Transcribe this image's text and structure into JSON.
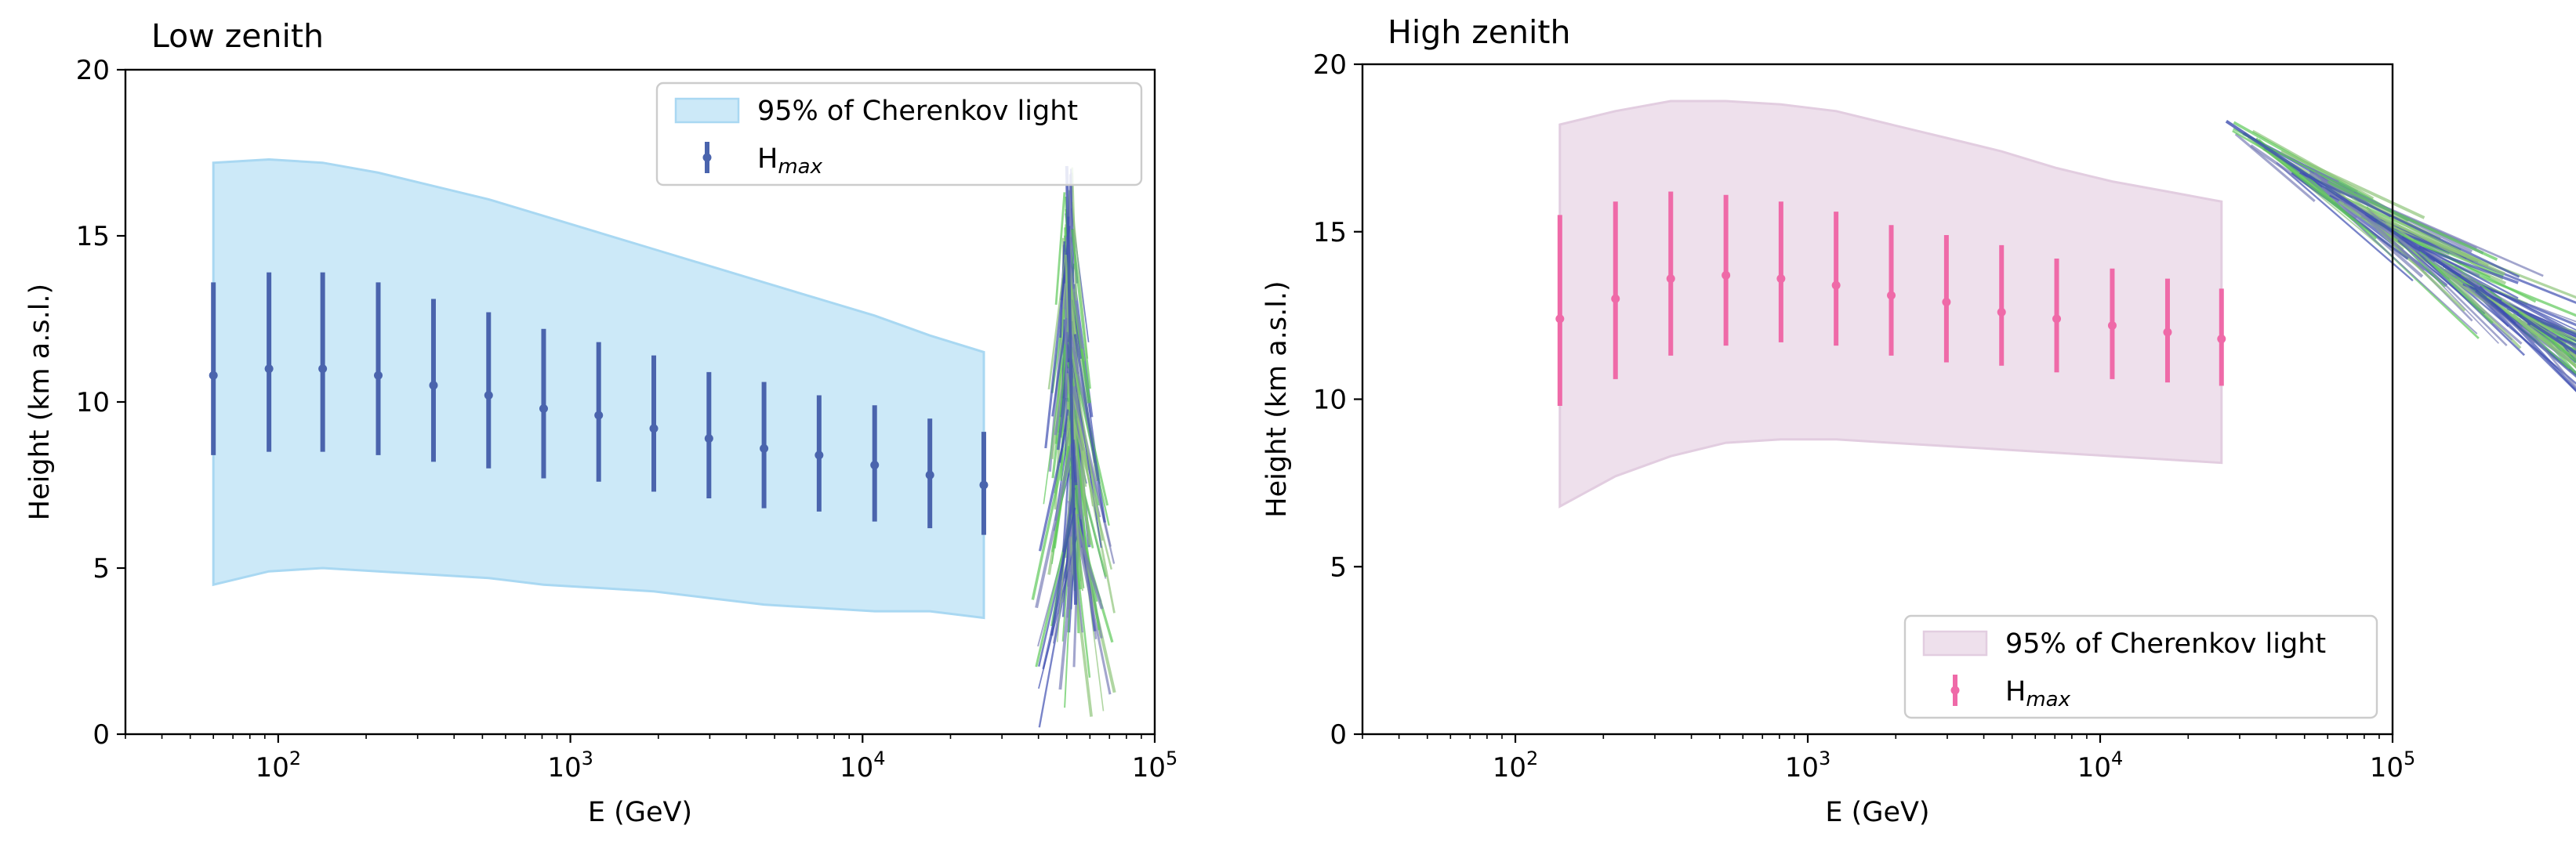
{
  "chart_data": [
    {
      "type": "errorbar+band",
      "title": "Low zenith",
      "xlabel": "E (GeV)",
      "ylabel": "Height (km a.s.l.)",
      "xscale": "log",
      "xlim": [
        30,
        100000
      ],
      "ylim": [
        0,
        20
      ],
      "yticks": [
        "0",
        "5",
        "10",
        "15",
        "20"
      ],
      "xticks": [
        {
          "base": "10",
          "exp": "2"
        },
        {
          "base": "10",
          "exp": "3"
        },
        {
          "base": "10",
          "exp": "4"
        },
        {
          "base": "10",
          "exp": "5"
        }
      ],
      "legend_position": "top-right",
      "band": {
        "name": "95% of Cherenkov light",
        "color": "#cce9f8",
        "edge_color": "#a9d8f2",
        "x": [
          60,
          93,
          142,
          220,
          340,
          525,
          810,
          1250,
          1930,
          2980,
          4600,
          7100,
          11000,
          17000,
          26000
        ],
        "lower": [
          4.5,
          4.9,
          5.0,
          4.9,
          4.8,
          4.7,
          4.5,
          4.4,
          4.3,
          4.1,
          3.9,
          3.8,
          3.7,
          3.7,
          3.5
        ],
        "upper": [
          17.2,
          17.3,
          17.2,
          16.9,
          16.5,
          16.1,
          15.6,
          15.1,
          14.6,
          14.1,
          13.6,
          13.1,
          12.6,
          12.0,
          11.5
        ]
      },
      "errorbars": {
        "name": "H",
        "name_sub": "max",
        "color": "#4a64ad",
        "x": [
          60,
          93,
          142,
          220,
          340,
          525,
          810,
          1250,
          1930,
          2980,
          4600,
          7100,
          11000,
          17000,
          26000
        ],
        "y": [
          10.8,
          11.0,
          11.0,
          10.8,
          10.5,
          10.2,
          9.8,
          9.6,
          9.2,
          8.9,
          8.6,
          8.4,
          8.1,
          7.8,
          7.5
        ],
        "yerr_low": [
          2.4,
          2.5,
          2.5,
          2.4,
          2.3,
          2.2,
          2.1,
          2.0,
          1.9,
          1.8,
          1.8,
          1.7,
          1.7,
          1.6,
          1.5
        ],
        "yerr_high": [
          2.8,
          2.9,
          2.9,
          2.8,
          2.6,
          2.5,
          2.4,
          2.2,
          2.2,
          2.0,
          2.0,
          1.8,
          1.8,
          1.7,
          1.6
        ]
      },
      "shower_illustration": {
        "colors": [
          "#7b7fb8",
          "#8fc47a",
          "#5ec95a",
          "#3f4fb0"
        ]
      }
    },
    {
      "type": "errorbar+band",
      "title": "High zenith",
      "xlabel": "E (GeV)",
      "ylabel": "Height (km a.s.l.)",
      "xscale": "log",
      "xlim": [
        30,
        100000
      ],
      "ylim": [
        0,
        20
      ],
      "yticks": [
        "0",
        "5",
        "10",
        "15",
        "20"
      ],
      "xticks": [
        {
          "base": "10",
          "exp": "2"
        },
        {
          "base": "10",
          "exp": "3"
        },
        {
          "base": "10",
          "exp": "4"
        },
        {
          "base": "10",
          "exp": "5"
        }
      ],
      "legend_position": "bottom-right",
      "band": {
        "name": "95% of Cherenkov light",
        "color": "#eee0ec",
        "edge_color": "#e2cde0",
        "x": [
          142,
          220,
          340,
          525,
          810,
          1250,
          1930,
          2980,
          4600,
          7100,
          11000,
          17000,
          26000
        ],
        "lower": [
          6.8,
          7.7,
          8.3,
          8.7,
          8.8,
          8.8,
          8.7,
          8.6,
          8.5,
          8.4,
          8.3,
          8.2,
          8.1
        ],
        "upper": [
          18.2,
          18.6,
          18.9,
          18.9,
          18.8,
          18.6,
          18.2,
          17.8,
          17.4,
          16.9,
          16.5,
          16.2,
          15.9
        ]
      },
      "errorbars": {
        "name": "H",
        "name_sub": "max",
        "color": "#ef6aa8",
        "x": [
          142,
          220,
          340,
          525,
          810,
          1250,
          1930,
          2980,
          4600,
          7100,
          11000,
          17000,
          26000
        ],
        "y": [
          12.4,
          13.0,
          13.6,
          13.7,
          13.6,
          13.4,
          13.1,
          12.9,
          12.6,
          12.4,
          12.2,
          12.0,
          11.8
        ],
        "yerr_low": [
          2.6,
          2.4,
          2.3,
          2.1,
          1.9,
          1.8,
          1.8,
          1.8,
          1.6,
          1.6,
          1.6,
          1.5,
          1.4
        ],
        "yerr_high": [
          3.1,
          2.9,
          2.6,
          2.4,
          2.3,
          2.2,
          2.1,
          2.0,
          2.0,
          1.8,
          1.7,
          1.6,
          1.5
        ]
      },
      "shower_illustration": {
        "colors": [
          "#7b7fb8",
          "#8fc47a",
          "#5ec95a",
          "#3f4fb0"
        ]
      }
    }
  ]
}
